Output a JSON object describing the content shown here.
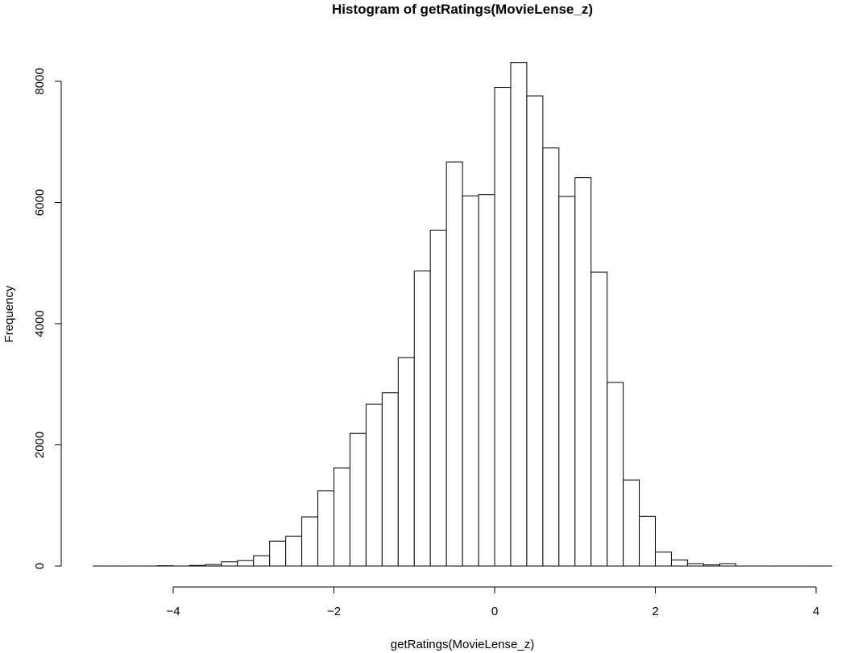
{
  "chart_data": {
    "type": "bar",
    "title": "Histogram of getRatings(MovieLense_z)",
    "xlabel": "getRatings(MovieLense_z)",
    "ylabel": "Frequency",
    "xlim": [
      -5.0,
      4.2
    ],
    "ylim": [
      0,
      8300
    ],
    "xticks": [
      -4,
      -2,
      0,
      2,
      4
    ],
    "xtick_labels": [
      "−4",
      "−2",
      "0",
      "2",
      "4"
    ],
    "yticks": [
      0,
      2000,
      4000,
      6000,
      8000
    ],
    "ytick_labels": [
      "0",
      "2000",
      "4000",
      "6000",
      "8000"
    ],
    "bin_width": 0.2,
    "bin_edges_start": -5.0,
    "values": [
      0,
      0,
      0,
      0,
      5,
      0,
      10,
      25,
      70,
      90,
      170,
      410,
      490,
      810,
      1240,
      1620,
      2190,
      2670,
      2860,
      3440,
      4870,
      5540,
      6670,
      6110,
      6130,
      7900,
      8310,
      7760,
      6900,
      6100,
      6410,
      4850,
      3030,
      1420,
      820,
      230,
      100,
      40,
      20,
      40,
      0,
      0,
      0,
      0,
      0,
      0
    ],
    "grid": false,
    "legend": "none",
    "bar_fill": "#ffffff",
    "bar_stroke": "#000000"
  }
}
